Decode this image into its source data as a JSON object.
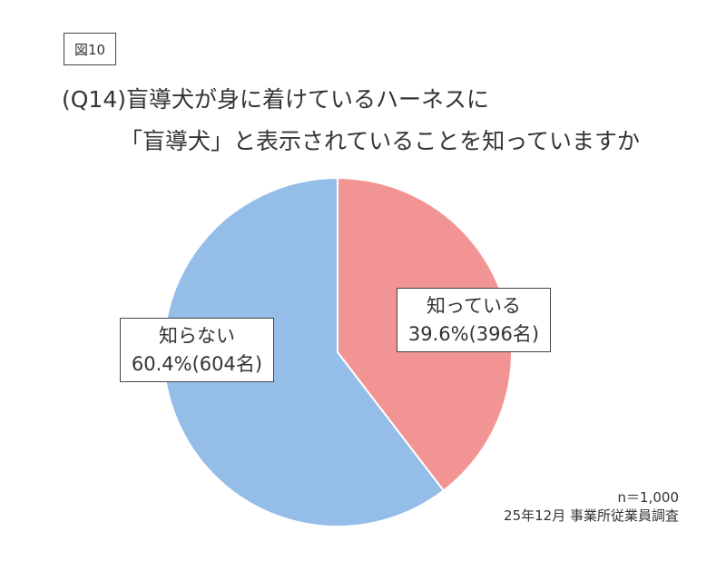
{
  "figure_label": "図10",
  "title_line1": "(Q14)盲導犬が身に着けているハーネスに",
  "title_line2": "「盲導犬」と表示されていることを知っていますか",
  "footnote": {
    "n": "n＝1,000",
    "source": "25年12月 事業所従業員調査"
  },
  "colors": {
    "know": "#f29494",
    "not_know": "#94bde8"
  },
  "chart_data": {
    "type": "pie",
    "start": "12 o'clock, clockwise",
    "slices": [
      {
        "label": "知っている",
        "percent": 39.6,
        "count": 396,
        "value_text": "39.6%(396名)",
        "color": "#f29494"
      },
      {
        "label": "知らない",
        "percent": 60.4,
        "count": 604,
        "value_text": "60.4%(604名)",
        "color": "#94bde8"
      }
    ]
  }
}
